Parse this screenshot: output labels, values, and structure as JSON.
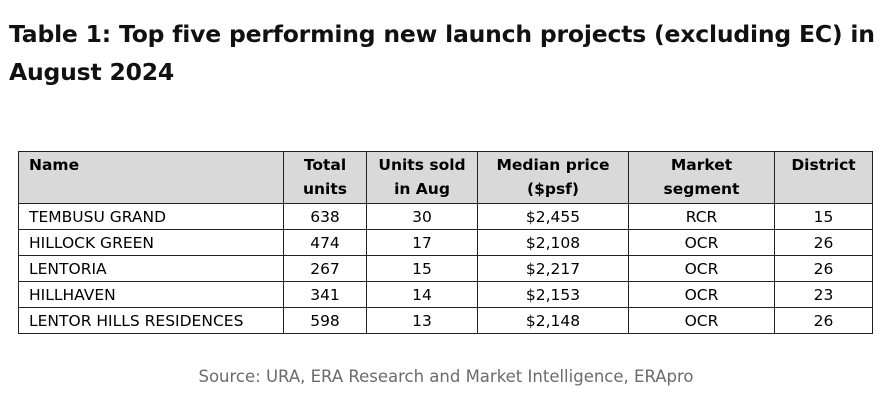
{
  "title": "Table 1: Top five performing new launch projects (excluding EC) in August 2024",
  "table": {
    "headers": [
      "Name",
      "Total units",
      "Units sold in Aug",
      "Median price ($psf)",
      "Market segment",
      "District"
    ],
    "rows": [
      [
        "TEMBUSU GRAND",
        "638",
        "30",
        "$2,455",
        "RCR",
        "15"
      ],
      [
        "HILLOCK GREEN",
        "474",
        "17",
        "$2,108",
        "OCR",
        "26"
      ],
      [
        "LENTORIA",
        "267",
        "15",
        "$2,217",
        "OCR",
        "26"
      ],
      [
        "HILLHAVEN",
        "341",
        "14",
        "$2,153",
        "OCR",
        "23"
      ],
      [
        "LENTOR HILLS RESIDENCES",
        "598",
        "13",
        "$2,148",
        "OCR",
        "26"
      ]
    ]
  },
  "source": "Source: URA, ERA Research and Market Intelligence, ERApro"
}
